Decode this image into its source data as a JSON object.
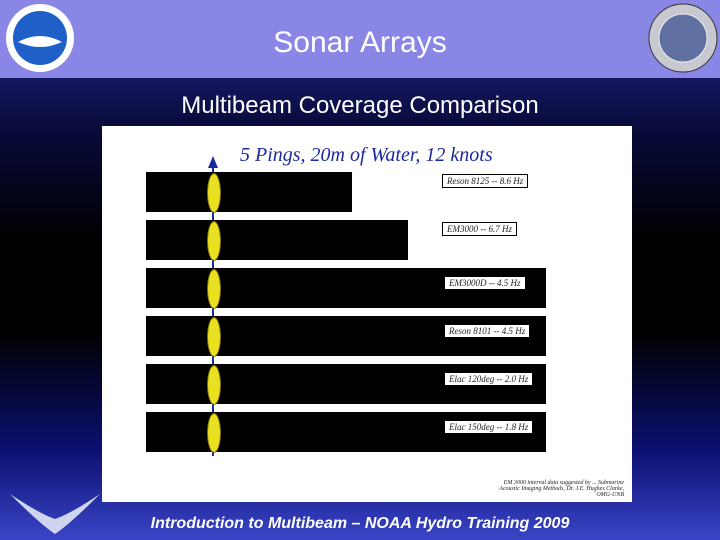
{
  "header": {
    "title": "Sonar Arrays"
  },
  "subtitle": "Multibeam Coverage Comparison",
  "figure": {
    "title": "5 Pings, 20m of Water, 12 knots",
    "rows": [
      "Reson 8125 -- 8.6 Hz",
      "EM3000 -- 6.7 Hz",
      "EM3000D -- 4.5 Hz",
      "Reson 8101 -- 4.5 Hz",
      "Elac 120deg -- 2.0 Hz",
      "Elac 150deg -- 1.8 Hz"
    ],
    "citation": "EM 3000 interval data suggested by ... Submarine Acoustic Imaging Methods, Dr. J.E. Hughes Clarke, OMG-UNB"
  },
  "footer": "Introduction to Multibeam – NOAA Hydro Training 2009"
}
